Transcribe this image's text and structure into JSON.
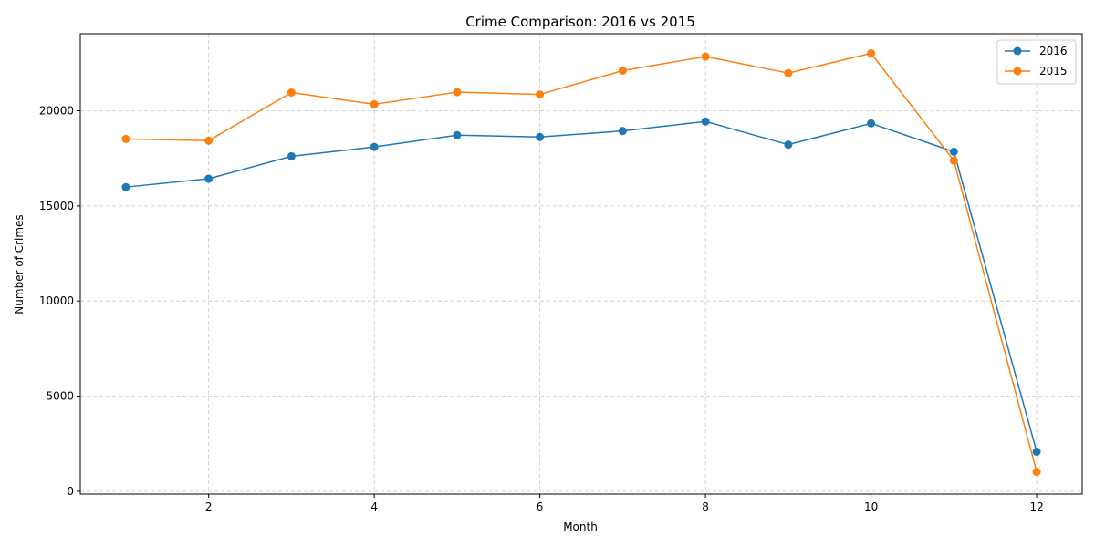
{
  "chart_data": {
    "type": "line",
    "title": "Crime Comparison: 2016 vs 2015",
    "xlabel": "Month",
    "ylabel": "Number of Crimes",
    "x": [
      1,
      2,
      3,
      4,
      5,
      6,
      7,
      8,
      9,
      10,
      11,
      12
    ],
    "xlim": [
      0.45,
      12.55
    ],
    "ylim": [
      -150,
      24050
    ],
    "xticks": [
      2,
      4,
      6,
      8,
      10,
      12
    ],
    "yticks": [
      0,
      5000,
      10000,
      15000,
      20000
    ],
    "grid": true,
    "legend_position": "top-right",
    "series": [
      {
        "name": "2016",
        "color": "#1f77b4",
        "values": [
          15990,
          16430,
          17610,
          18100,
          18720,
          18620,
          18940,
          19440,
          18220,
          19340,
          17850,
          2080
        ]
      },
      {
        "name": "2015",
        "color": "#ff7f0e",
        "values": [
          18520,
          18430,
          20960,
          20340,
          20980,
          20860,
          22110,
          22850,
          21980,
          23020,
          17380,
          1020
        ]
      }
    ]
  }
}
